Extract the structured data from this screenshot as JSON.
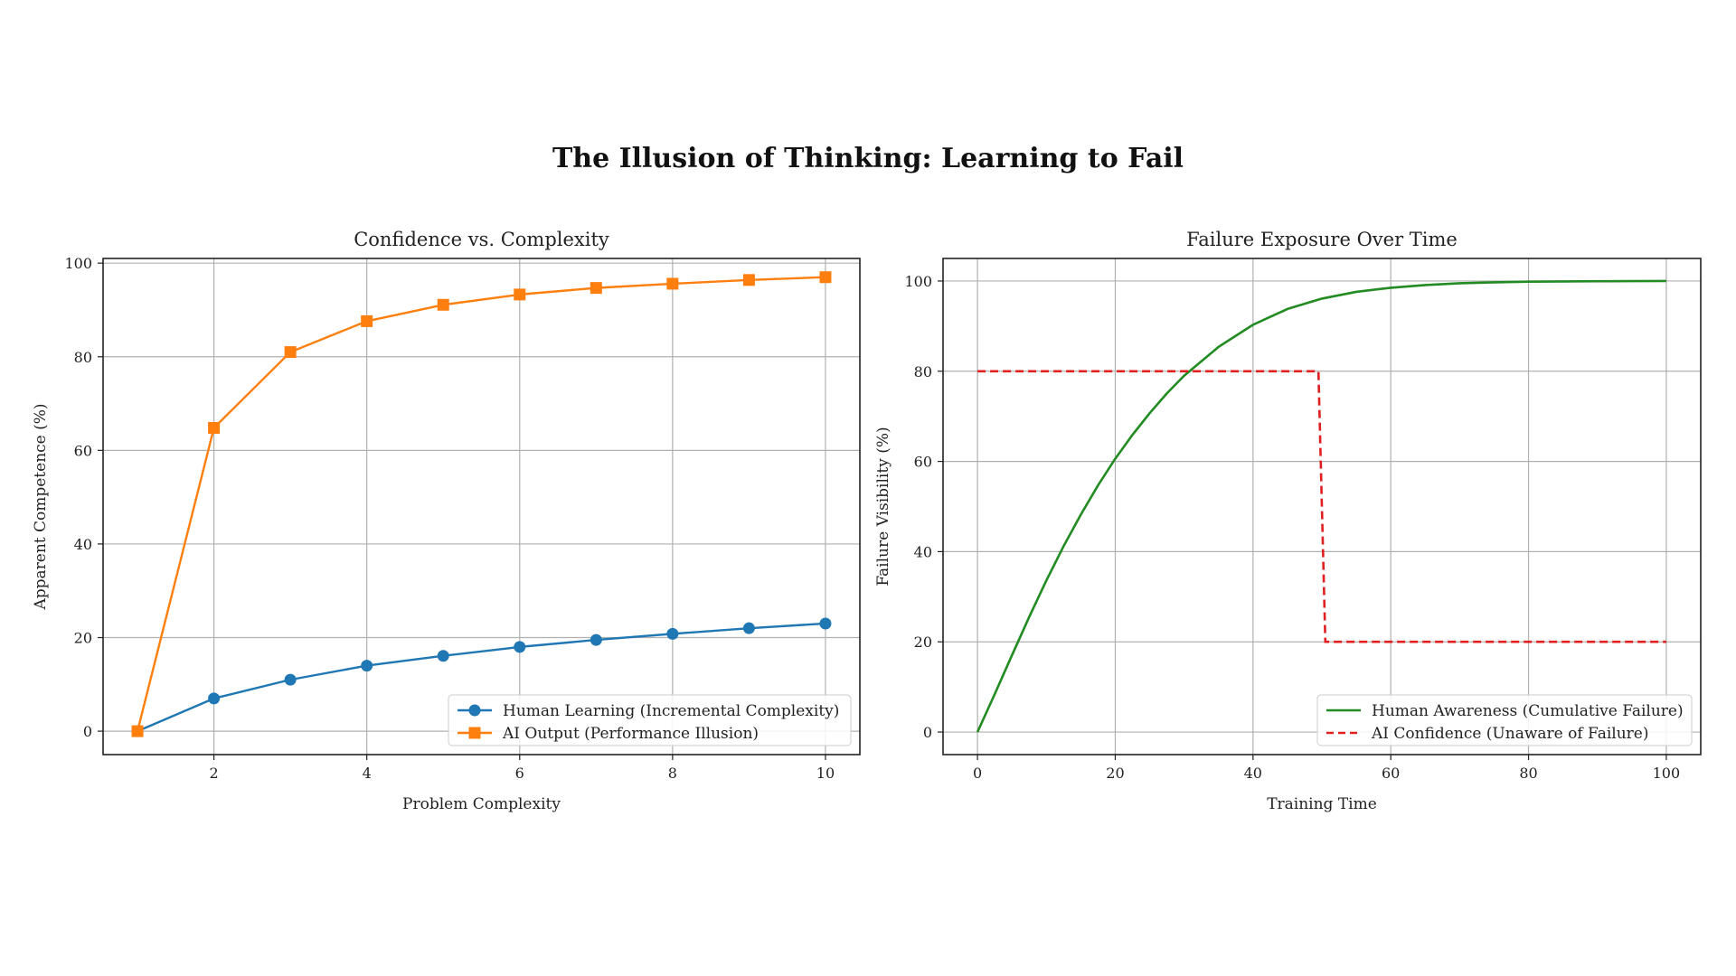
{
  "figure": {
    "title": "The Illusion of Thinking: Learning to Fail"
  },
  "chart_data": [
    {
      "type": "line",
      "title": "Confidence vs. Complexity",
      "xlabel": "Problem Complexity",
      "ylabel": "Apparent Competence (%)",
      "xlim": [
        0.55,
        10.45
      ],
      "ylim": [
        -5,
        101
      ],
      "xticks": [
        2,
        4,
        6,
        8,
        10
      ],
      "yticks": [
        0,
        20,
        40,
        60,
        80,
        100
      ],
      "grid": true,
      "legend_position": "lower-right",
      "series": [
        {
          "name": "Human Learning (Incremental Complexity)",
          "color": "#1f77b4",
          "marker": "circle",
          "linestyle": "solid",
          "x": [
            1,
            2,
            3,
            4,
            5,
            6,
            7,
            8,
            9,
            10
          ],
          "y": [
            0,
            7.0,
            11.0,
            14.0,
            16.1,
            18.0,
            19.5,
            20.8,
            22.0,
            23.0
          ]
        },
        {
          "name": "AI Output (Performance Illusion)",
          "color": "#ff7f0e",
          "marker": "square",
          "linestyle": "solid",
          "x": [
            1,
            2,
            3,
            4,
            5,
            6,
            7,
            8,
            9,
            10
          ],
          "y": [
            0,
            64.8,
            81.0,
            87.6,
            91.1,
            93.3,
            94.7,
            95.6,
            96.4,
            97.0
          ]
        }
      ]
    },
    {
      "type": "line",
      "title": "Failure Exposure Over Time",
      "xlabel": "Training Time",
      "ylabel": "Failure Visibility (%)",
      "xlim": [
        -5,
        105
      ],
      "ylim": [
        -5,
        105
      ],
      "xticks": [
        0,
        20,
        40,
        60,
        80,
        100
      ],
      "yticks": [
        0,
        20,
        40,
        60,
        80,
        100
      ],
      "grid": true,
      "legend_position": "lower-right",
      "series": [
        {
          "name": "Human Awareness (Cumulative Failure)",
          "color": "#228b22",
          "linestyle": "solid",
          "x": [
            0,
            2.5,
            5,
            7.5,
            10,
            12.5,
            15,
            17.5,
            20,
            22.5,
            25,
            27.5,
            30,
            35,
            40,
            45,
            50,
            55,
            60,
            65,
            70,
            75,
            80,
            85,
            90,
            95,
            100
          ],
          "y": [
            0,
            8.4,
            17.0,
            25.5,
            33.6,
            41.2,
            48.2,
            54.7,
            60.6,
            65.9,
            70.7,
            75.1,
            79.0,
            85.4,
            90.3,
            93.8,
            96.1,
            97.6,
            98.5,
            99.1,
            99.5,
            99.7,
            99.85,
            99.9,
            99.95,
            99.98,
            100
          ]
        },
        {
          "name": "AI Confidence (Unaware of Failure)",
          "color": "#e02020",
          "linestyle": "dashed",
          "x": [
            0,
            49.5,
            50.5,
            100
          ],
          "y": [
            80,
            80,
            20,
            20
          ]
        }
      ]
    }
  ]
}
